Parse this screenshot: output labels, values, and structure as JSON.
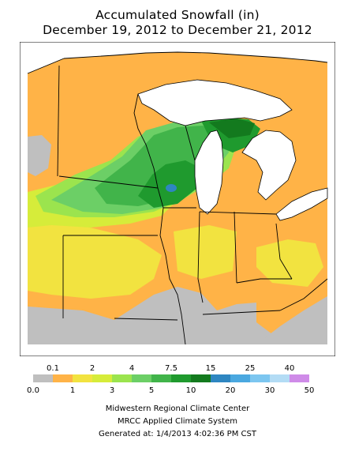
{
  "title": {
    "line1": "Accumulated Snowfall (in)",
    "line2": "December 19, 2012 to December 21, 2012"
  },
  "legend": {
    "bins": [
      {
        "color": "#bfbfbf"
      },
      {
        "color": "#ffb347"
      },
      {
        "color": "#f2e340"
      },
      {
        "color": "#d6ec3a"
      },
      {
        "color": "#9be44e"
      },
      {
        "color": "#6ccf66"
      },
      {
        "color": "#41b44a"
      },
      {
        "color": "#1f9a2e"
      },
      {
        "color": "#137a1e"
      },
      {
        "color": "#2e86c1"
      },
      {
        "color": "#4aa8e0"
      },
      {
        "color": "#7cc6f0"
      },
      {
        "color": "#b3dcf5"
      },
      {
        "color": "#cf8be8"
      }
    ],
    "top_labels": [
      "0.1",
      "2",
      "4",
      "7.5",
      "15",
      "25",
      "40"
    ],
    "bottom_labels": [
      "0.0",
      "1",
      "3",
      "5",
      "10",
      "20",
      "30",
      "50"
    ]
  },
  "footer": {
    "line1": "Midwestern Regional Climate Center",
    "line2": "MRCC Applied Climate System",
    "line3": "Generated at: 1/4/2013 4:02:36 PM CST"
  },
  "colors": {
    "lake": "#ffffff",
    "border": "#000000",
    "frame": "#000000"
  }
}
